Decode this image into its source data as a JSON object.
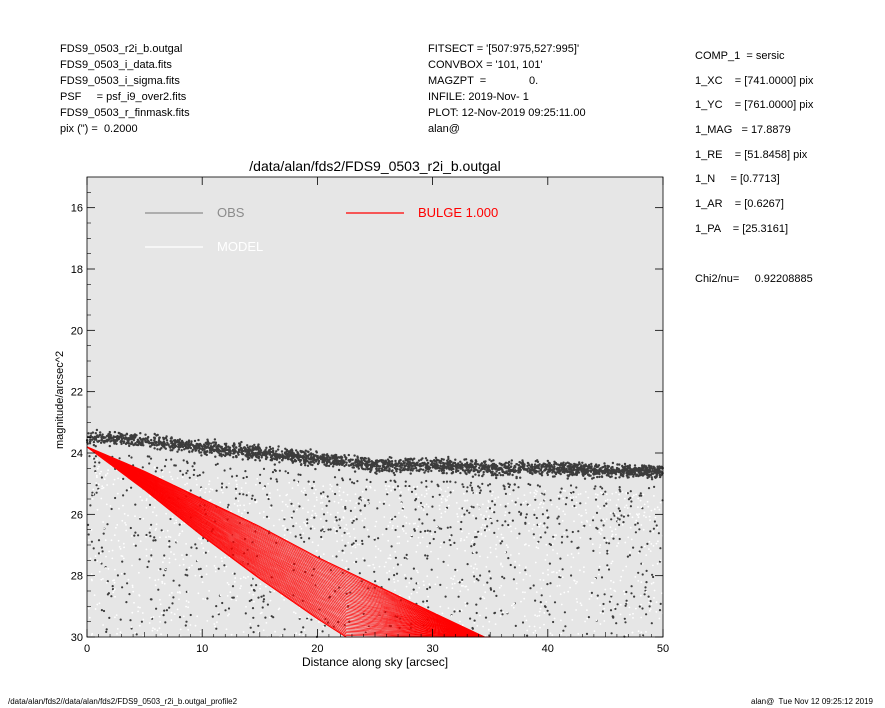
{
  "header_left": [
    "FDS9_0503_r2i_b.outgal",
    "FDS9_0503_i_data.fits",
    "FDS9_0503_i_sigma.fits",
    "PSF     = psf_i9_over2.fits",
    "FDS9_0503_r_finmask.fits",
    "pix (\") =  0.2000"
  ],
  "header_mid": [
    "FITSECT = '[507:975,527:995]'",
    "CONVBOX = '101, 101'",
    "MAGZPT  =              0.",
    "INFILE: 2019-Nov- 1",
    "PLOT: 12-Nov-2019 09:25:11.00",
    "alan@"
  ],
  "params": [
    "COMP_1  = sersic",
    "1_XC    = [741.0000] pix",
    "1_YC    = [761.0000] pix",
    "1_MAG   = 17.8879",
    "1_RE    = [51.8458] pix",
    "1_N     = [0.7713]",
    "1_AR    = [0.6267]",
    "1_PA    = [25.3161]"
  ],
  "chi": "Chi2/nu=     0.92208885",
  "footer_left": "/data/alan/fds2//data/alan/fds2/FDS9_0503_r2i_b.outgal_profile2",
  "footer_right": "alan@  Tue Nov 12 09:25:12 2019",
  "chart_data": {
    "type": "scatter",
    "title": "/data/alan/fds2/FDS9_0503_r2i_b.outgal",
    "xlabel": "Distance along sky [arcsec]",
    "ylabel": "magnitude/arcsec^2",
    "xlim": [
      0,
      50
    ],
    "ylim": [
      30,
      15
    ],
    "y_inverted": true,
    "xticks": [
      0,
      10,
      20,
      30,
      40,
      50
    ],
    "yticks": [
      16,
      18,
      20,
      22,
      24,
      26,
      28,
      30
    ],
    "background": "#e6e6e6",
    "grid": false,
    "legend": [
      {
        "label": "OBS",
        "color": "#8c8c8c"
      },
      {
        "label": "BULGE  1.000",
        "color": "#ff0000"
      },
      {
        "label": "MODEL",
        "color": "#ffffff"
      }
    ],
    "series": [
      {
        "name": "OBS",
        "color": "#3c3c3c",
        "band_x": [
          0,
          1,
          2,
          5,
          10,
          15,
          20,
          25,
          30,
          35,
          40,
          45,
          50
        ],
        "band_y": [
          23.6,
          23.5,
          23.5,
          23.6,
          23.8,
          24.0,
          24.2,
          24.4,
          24.4,
          24.5,
          24.5,
          24.6,
          24.6
        ],
        "scatter_y_range": [
          24.0,
          30.0
        ]
      },
      {
        "name": "MODEL",
        "color": "#ffffff",
        "band_x": [
          0,
          5,
          10,
          20,
          30,
          40,
          50
        ],
        "band_y": [
          23.7,
          24.0,
          24.3,
          24.6,
          24.7,
          24.8,
          24.9
        ]
      },
      {
        "name": "BULGE  1.000",
        "color": "#ff0000",
        "upper_edge": {
          "x": [
            0,
            5,
            10,
            15,
            20,
            25,
            30,
            34.5
          ],
          "y": [
            23.8,
            24.6,
            25.5,
            26.4,
            27.4,
            28.3,
            29.2,
            30.0
          ]
        },
        "lower_edge": {
          "x": [
            0,
            5,
            10,
            15,
            20,
            22.5
          ],
          "y": [
            23.8,
            25.2,
            26.7,
            28.1,
            29.4,
            30.0
          ]
        }
      }
    ]
  }
}
